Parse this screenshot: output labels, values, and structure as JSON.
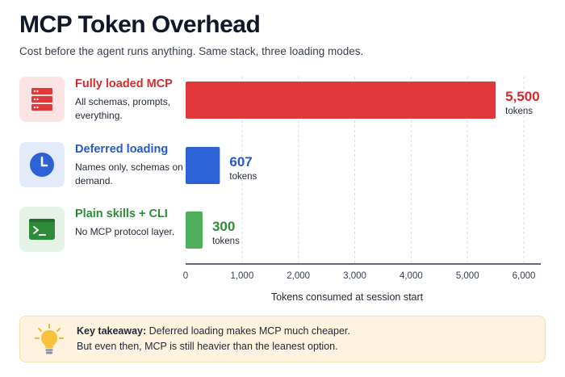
{
  "title": "MCP Token Overhead",
  "subtitle": "Cost before the agent runs anything. Same stack, three loading modes.",
  "rows": [
    {
      "name": "Fully loaded MCP",
      "desc": "All schemas, prompts, everything.",
      "icon": "server-stack-icon",
      "color": "#e0383b",
      "name_color": "#d42b2e",
      "icon_bg": "#fde4e4"
    },
    {
      "name": "Deferred loading",
      "desc": "Names only, schemas on demand.",
      "icon": "clock-icon",
      "color": "#2d62d6",
      "name_color": "#2659c8",
      "icon_bg": "#e3ebfb"
    },
    {
      "name": "Plain skills + CLI",
      "desc": "No MCP protocol layer.",
      "icon": "terminal-icon",
      "color": "#4fae5b",
      "name_color": "#2e8b3a",
      "icon_bg": "#e5f3e6"
    }
  ],
  "chart_data": {
    "type": "bar",
    "orientation": "horizontal",
    "categories": [
      "Fully loaded MCP",
      "Deferred loading",
      "Plain skills + CLI"
    ],
    "values": [
      5500,
      607,
      300
    ],
    "value_labels": [
      "5,500",
      "607",
      "300"
    ],
    "value_unit": "tokens",
    "xlabel": "Tokens consumed at session start",
    "xlim": [
      0,
      6300
    ],
    "xticks": [
      0,
      1000,
      2000,
      3000,
      4000,
      5000,
      6000
    ],
    "xtick_labels": [
      "0",
      "1,000",
      "2,000",
      "3,000",
      "4,000",
      "5,000",
      "6,000"
    ],
    "grid": "vertical dashed",
    "colors": [
      "#e0383b",
      "#2d62d6",
      "#4fae5b"
    ],
    "label_colors": [
      "#d42b2e",
      "#2659c8",
      "#2e8b3a"
    ]
  },
  "takeaway": {
    "icon": "lightbulb-icon",
    "label": "Key takeaway:",
    "line1": " Deferred loading makes MCP much cheaper.",
    "line2": "But even then, MCP is still heavier than the leanest option.",
    "bg": "#fdf3df"
  }
}
